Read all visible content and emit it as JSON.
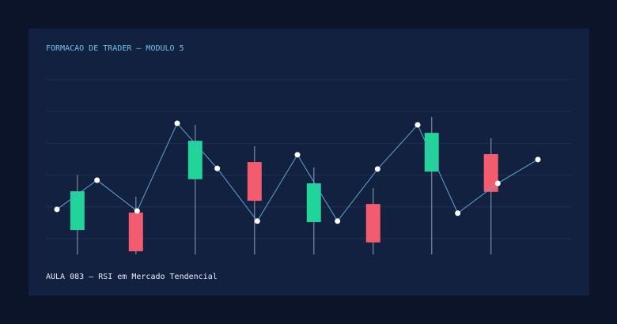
{
  "chart_data": {
    "type": "candlestick",
    "title": "FORMACAO DE TRADER – MODULO 5",
    "caption": "AULA 083 – RSI em Mercado Tendencial",
    "xlim": [
      0,
      12
    ],
    "ylim": [
      -0.5,
      5
    ],
    "yticks": [
      0,
      1,
      2,
      3,
      4,
      5
    ],
    "grid": true,
    "up_color": "#22d39a",
    "down_color": "#f25c6e",
    "wick_color": "#7f8ba0",
    "candles": {
      "x": [
        0.51,
        1.97,
        3.45,
        4.93,
        6.41,
        7.89,
        9.35,
        10.83
      ],
      "open": [
        0.27,
        0.82,
        1.87,
        2.41,
        0.52,
        1.09,
        2.11,
        2.66
      ],
      "high": [
        2.0,
        1.32,
        3.58,
        2.91,
        2.24,
        1.59,
        3.83,
        3.16
      ],
      "low": [
        -0.5,
        -0.5,
        -0.5,
        -0.5,
        -0.5,
        -0.5,
        -0.5,
        -0.5
      ],
      "close": [
        1.49,
        -0.4,
        3.08,
        1.19,
        1.74,
        -0.12,
        3.33,
        1.47
      ]
    },
    "line": {
      "color": "#5aa6d6",
      "x": [
        0,
        1,
        2,
        3,
        4,
        5,
        6,
        7,
        8,
        9,
        10,
        11,
        12
      ],
      "values": [
        0.92,
        1.84,
        0.87,
        3.63,
        2.21,
        0.55,
        2.64,
        0.55,
        2.19,
        3.58,
        0.8,
        1.74,
        2.49
      ]
    }
  }
}
